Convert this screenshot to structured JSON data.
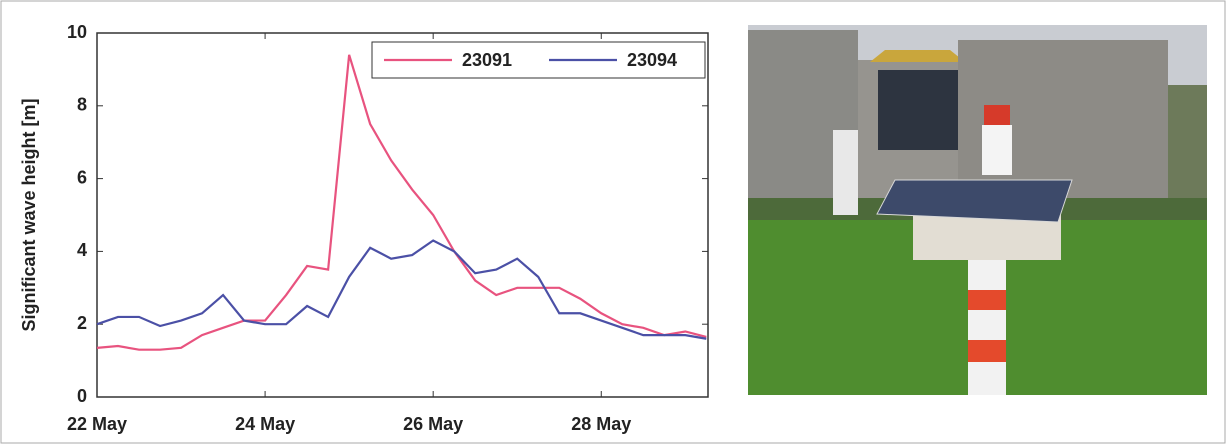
{
  "chart_data": {
    "type": "line",
    "y_label": "Significant wave height [m]",
    "x": [
      22,
      22.25,
      22.5,
      22.75,
      23,
      23.25,
      23.5,
      23.75,
      24,
      24.25,
      24.5,
      24.75,
      25,
      25.25,
      25.5,
      25.75,
      26,
      26.25,
      26.5,
      26.75,
      27,
      27.25,
      27.5,
      27.75,
      28,
      28.25,
      28.5,
      28.75,
      29,
      29.25
    ],
    "series": [
      {
        "name": "23091",
        "color": "#e8537f",
        "values": [
          1.35,
          1.4,
          1.3,
          1.3,
          1.35,
          1.7,
          1.9,
          2.1,
          2.1,
          2.8,
          3.6,
          3.5,
          9.4,
          7.5,
          6.5,
          5.7,
          5.0,
          4.0,
          3.2,
          2.8,
          3.0,
          3.0,
          3.0,
          2.7,
          2.3,
          2.0,
          1.9,
          1.7,
          1.8,
          1.65
        ]
      },
      {
        "name": "23094",
        "color": "#4b50a6",
        "values": [
          2.0,
          2.2,
          2.2,
          1.95,
          2.1,
          2.3,
          2.8,
          2.1,
          2.0,
          2.0,
          2.5,
          2.2,
          3.3,
          4.1,
          3.8,
          3.9,
          4.3,
          4.0,
          3.4,
          3.5,
          3.8,
          3.3,
          2.3,
          2.3,
          2.1,
          1.9,
          1.7,
          1.7,
          1.7,
          1.6
        ]
      }
    ],
    "xlim": [
      22,
      29.27
    ],
    "xticks": [
      {
        "value": 22,
        "label": "22 May"
      },
      {
        "value": 24,
        "label": "24 May"
      },
      {
        "value": 26,
        "label": "26 May"
      },
      {
        "value": 28,
        "label": "28 May"
      }
    ],
    "ylim": [
      0,
      10
    ],
    "yticks": [
      0,
      2,
      4,
      6,
      8,
      10
    ],
    "grid": false,
    "legend": "upper-right"
  }
}
